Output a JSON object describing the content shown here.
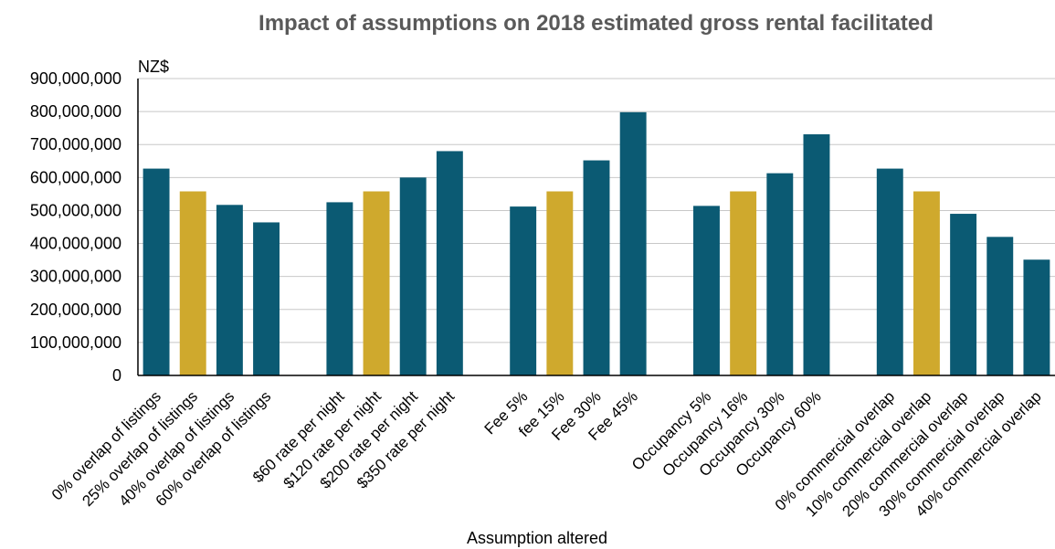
{
  "chart_data": {
    "type": "bar",
    "title": "Impact of assumptions on 2018 estimated gross rental facilitated",
    "xlabel": "Assumption altered",
    "ylabel": "NZ$",
    "ylim": [
      0,
      900000000
    ],
    "yticks": [
      "0",
      "100,000,000",
      "200,000,000",
      "300,000,000",
      "400,000,000",
      "500,000,000",
      "600,000,000",
      "700,000,000",
      "800,000,000",
      "900,000,000"
    ],
    "grid": true,
    "colors": {
      "scenario": "#0b5a73",
      "baseline": "#cfa92d"
    },
    "groups": [
      {
        "bars": [
          {
            "label": "0% overlap of listings",
            "value": 627000000,
            "baseline": false
          },
          {
            "label": "25% overlap of listings",
            "value": 558000000,
            "baseline": true
          },
          {
            "label": "40% overlap of listings",
            "value": 517000000,
            "baseline": false
          },
          {
            "label": "60% overlap of listings",
            "value": 464000000,
            "baseline": false
          }
        ]
      },
      {
        "bars": [
          {
            "label": "$60 rate per night",
            "value": 525000000,
            "baseline": false
          },
          {
            "label": "$120 rate per night",
            "value": 558000000,
            "baseline": true
          },
          {
            "label": "$200 rate per night",
            "value": 600000000,
            "baseline": false
          },
          {
            "label": "$350 rate per night",
            "value": 680000000,
            "baseline": false
          }
        ]
      },
      {
        "bars": [
          {
            "label": "Fee 5%",
            "value": 512000000,
            "baseline": false
          },
          {
            "label": "fee 15%",
            "value": 558000000,
            "baseline": true
          },
          {
            "label": "Fee 30%",
            "value": 652000000,
            "baseline": false
          },
          {
            "label": "Fee 45%",
            "value": 798000000,
            "baseline": false
          }
        ]
      },
      {
        "bars": [
          {
            "label": "Occupancy 5%",
            "value": 514000000,
            "baseline": false
          },
          {
            "label": "Occupancy 16%",
            "value": 558000000,
            "baseline": true
          },
          {
            "label": "Occupancy 30%",
            "value": 613000000,
            "baseline": false
          },
          {
            "label": "Occupancy 60%",
            "value": 731000000,
            "baseline": false
          }
        ]
      },
      {
        "bars": [
          {
            "label": "0% commercial overlap",
            "value": 627000000,
            "baseline": false
          },
          {
            "label": "10% commercial overlap",
            "value": 558000000,
            "baseline": true
          },
          {
            "label": "20% commercial overlap",
            "value": 490000000,
            "baseline": false
          },
          {
            "label": "30% commercial overlap",
            "value": 420000000,
            "baseline": false
          },
          {
            "label": "40% commercial overlap",
            "value": 351000000,
            "baseline": false
          }
        ]
      }
    ]
  }
}
